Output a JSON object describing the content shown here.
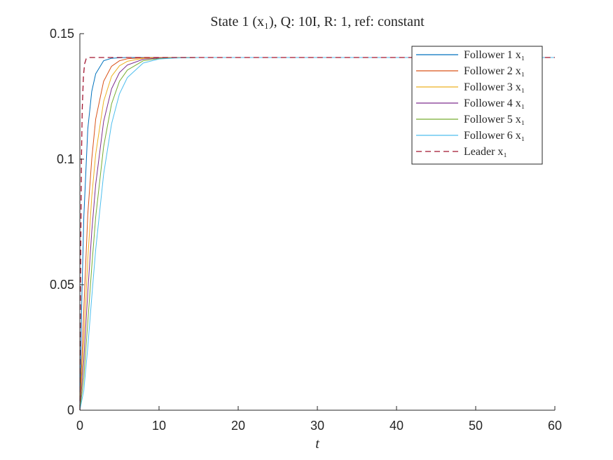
{
  "chart_data": {
    "type": "line",
    "title": "State 1 (x₁), Q: 10I, R: 1, ref: constant",
    "xlabel": "t",
    "ylabel": "",
    "xlim": [
      0,
      60
    ],
    "ylim": [
      0,
      0.15
    ],
    "x_ticks": [
      "0",
      "10",
      "20",
      "30",
      "40",
      "50",
      "60"
    ],
    "y_ticks": [
      "0",
      "0.05",
      "0.1",
      "0.15"
    ],
    "grid": false,
    "legend_position": "top-right",
    "steady_value": 0.1405,
    "series": [
      {
        "name": "Follower 1 x₁",
        "color": "#0072BD",
        "dash": false,
        "x": [
          0,
          0.25,
          0.5,
          1,
          1.5,
          2,
          3,
          4,
          5,
          6,
          8,
          10,
          15,
          60
        ],
        "y": [
          0,
          0.045,
          0.077,
          0.112,
          0.127,
          0.134,
          0.1392,
          0.1402,
          0.1404,
          0.1405,
          0.1405,
          0.1405,
          0.1405,
          0.1405
        ]
      },
      {
        "name": "Follower 2 x₁",
        "color": "#D95319",
        "dash": false,
        "x": [
          0,
          0.5,
          1,
          1.5,
          2,
          3,
          4,
          5,
          6,
          8,
          10,
          15,
          60
        ],
        "y": [
          0,
          0.04,
          0.078,
          0.1,
          0.116,
          0.131,
          0.137,
          0.1392,
          0.14,
          0.1404,
          0.1405,
          0.1405,
          0.1405
        ]
      },
      {
        "name": "Follower 3 x₁",
        "color": "#EDB120",
        "dash": false,
        "x": [
          0,
          0.5,
          1,
          1.5,
          2,
          3,
          4,
          5,
          6,
          8,
          10,
          15,
          60
        ],
        "y": [
          0,
          0.028,
          0.06,
          0.085,
          0.102,
          0.123,
          0.133,
          0.1372,
          0.139,
          0.1402,
          0.1404,
          0.1405,
          0.1405
        ]
      },
      {
        "name": "Follower 4 x₁",
        "color": "#7E2F8E",
        "dash": false,
        "x": [
          0,
          0.5,
          1,
          1.5,
          2,
          3,
          4,
          5,
          6,
          8,
          10,
          15,
          60
        ],
        "y": [
          0,
          0.02,
          0.047,
          0.071,
          0.09,
          0.115,
          0.128,
          0.1345,
          0.1375,
          0.1398,
          0.1403,
          0.1405,
          0.1405
        ]
      },
      {
        "name": "Follower 5 x₁",
        "color": "#77AC30",
        "dash": false,
        "x": [
          0,
          0.5,
          1,
          1.5,
          2,
          3,
          4,
          5,
          6,
          8,
          10,
          12,
          15,
          60
        ],
        "y": [
          0,
          0.013,
          0.035,
          0.057,
          0.077,
          0.105,
          0.122,
          0.131,
          0.1355,
          0.1392,
          0.1401,
          0.1404,
          0.1405,
          0.1405
        ]
      },
      {
        "name": "Follower 6 x₁",
        "color": "#4DBEEE",
        "dash": false,
        "x": [
          0,
          0.5,
          1,
          1.5,
          2,
          3,
          4,
          5,
          6,
          8,
          10,
          12,
          15,
          60
        ],
        "y": [
          0,
          0.008,
          0.025,
          0.045,
          0.064,
          0.094,
          0.114,
          0.126,
          0.1325,
          0.1383,
          0.1399,
          0.1403,
          0.1405,
          0.1405
        ]
      },
      {
        "name": "Leader x₁",
        "color": "#A2142F",
        "dash": true,
        "x": [
          0,
          0.1,
          0.2,
          0.3,
          0.45,
          0.6,
          0.8,
          1,
          60
        ],
        "y": [
          0,
          0.06,
          0.1,
          0.12,
          0.133,
          0.138,
          0.14,
          0.1405,
          0.1405
        ]
      }
    ]
  }
}
